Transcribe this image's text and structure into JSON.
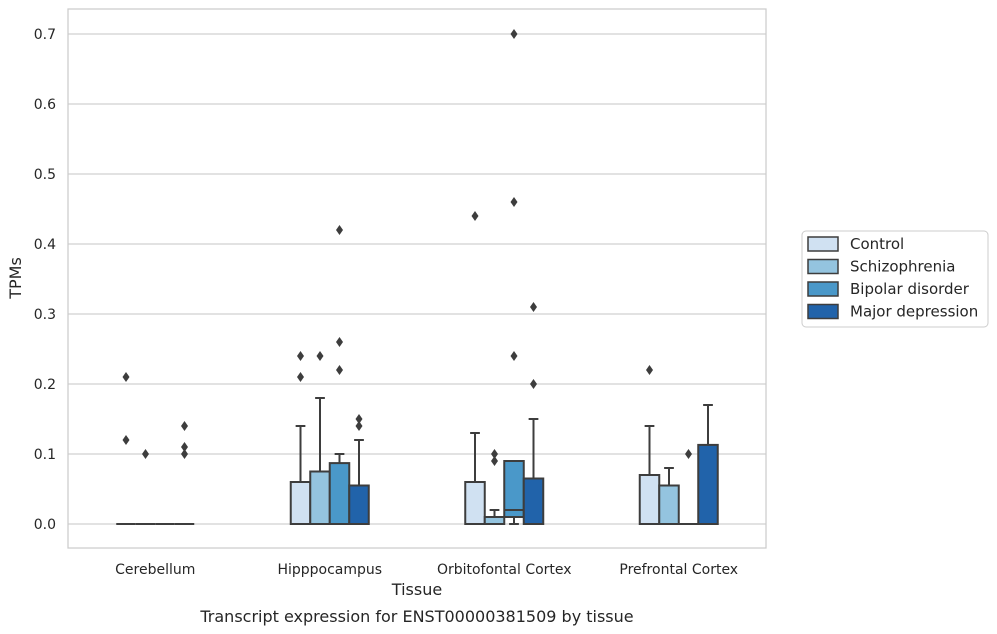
{
  "caption": "Transcript expression for ENST00000381509 by tissue",
  "chart_data": {
    "type": "box",
    "xlabel": "Tissue",
    "ylabel": "TPMs",
    "ylim": [
      -0.035,
      0.735
    ],
    "yticks": [
      "0.0",
      "0.1",
      "0.2",
      "0.3",
      "0.4",
      "0.5",
      "0.6",
      "0.7"
    ],
    "categories": [
      "Cerebellum",
      "Hipppocampus",
      "Orbitofontal Cortex",
      "Prefrontal Cortex"
    ],
    "grid": "horizontal",
    "legend_position": "right",
    "series": [
      {
        "name": "Control",
        "color": "#d0e1f2",
        "boxes": [
          {
            "q1": 0,
            "median": 0,
            "q3": 0,
            "whisker_low": 0,
            "whisker_high": 0,
            "outliers": [
              0.21,
              0.12
            ]
          },
          {
            "q1": 0,
            "median": 0,
            "q3": 0.06,
            "whisker_low": 0,
            "whisker_high": 0.14,
            "outliers": [
              0.24,
              0.21
            ]
          },
          {
            "q1": 0,
            "median": 0,
            "q3": 0.06,
            "whisker_low": 0,
            "whisker_high": 0.13,
            "outliers": [
              0.44
            ]
          },
          {
            "q1": 0,
            "median": 0,
            "q3": 0.07,
            "whisker_low": 0,
            "whisker_high": 0.14,
            "outliers": [
              0.22
            ]
          }
        ]
      },
      {
        "name": "Schizophrenia",
        "color": "#94c4df",
        "boxes": [
          {
            "q1": 0,
            "median": 0,
            "q3": 0,
            "whisker_low": 0,
            "whisker_high": 0,
            "outliers": [
              0.1
            ]
          },
          {
            "q1": 0,
            "median": 0,
            "q3": 0.075,
            "whisker_low": 0,
            "whisker_high": 0.18,
            "outliers": [
              0.24
            ]
          },
          {
            "q1": 0,
            "median": 0,
            "q3": 0.01,
            "whisker_low": 0,
            "whisker_high": 0.02,
            "outliers": [
              0.1,
              0.09
            ]
          },
          {
            "q1": 0,
            "median": 0,
            "q3": 0.055,
            "whisker_low": 0,
            "whisker_high": 0.08,
            "outliers": []
          }
        ]
      },
      {
        "name": "Bipolar disorder",
        "color": "#4a98c9",
        "boxes": [
          {
            "q1": 0,
            "median": 0,
            "q3": 0,
            "whisker_low": 0,
            "whisker_high": 0,
            "outliers": []
          },
          {
            "q1": 0,
            "median": 0,
            "q3": 0.087,
            "whisker_low": 0,
            "whisker_high": 0.1,
            "outliers": [
              0.42,
              0.26,
              0.22
            ]
          },
          {
            "q1": 0.01,
            "median": 0.02,
            "q3": 0.09,
            "whisker_low": 0,
            "whisker_high": 0.09,
            "outliers": [
              0.7,
              0.46,
              0.24
            ]
          },
          {
            "q1": 0,
            "median": 0,
            "q3": 0,
            "whisker_low": 0,
            "whisker_high": 0,
            "outliers": [
              0.1
            ]
          }
        ]
      },
      {
        "name": "Major depression",
        "color": "#2163aa",
        "boxes": [
          {
            "q1": 0,
            "median": 0,
            "q3": 0,
            "whisker_low": 0,
            "whisker_high": 0,
            "outliers": [
              0.14,
              0.11,
              0.1
            ]
          },
          {
            "q1": 0,
            "median": 0,
            "q3": 0.055,
            "whisker_low": 0,
            "whisker_high": 0.12,
            "outliers": [
              0.15,
              0.14
            ]
          },
          {
            "q1": 0,
            "median": 0,
            "q3": 0.065,
            "whisker_low": 0,
            "whisker_high": 0.15,
            "outliers": [
              0.31,
              0.2
            ]
          },
          {
            "q1": 0,
            "median": 0,
            "q3": 0.113,
            "whisker_low": 0,
            "whisker_high": 0.17,
            "outliers": []
          }
        ]
      }
    ]
  }
}
